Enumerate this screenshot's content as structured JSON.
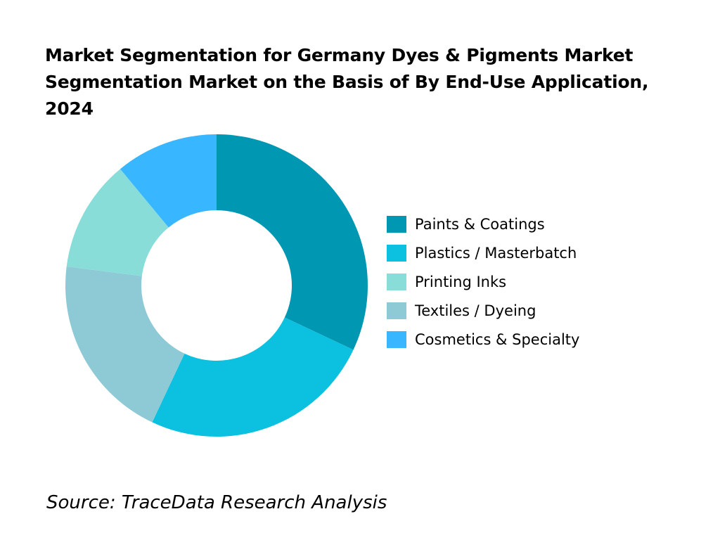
{
  "chart_data": {
    "type": "pie",
    "donut": true,
    "title": "Market Segmentation for Germany Dyes & Pigments Market Segmentation Market on the Basis of By End-Use Application, 2024",
    "categories": [
      "Paints & Coatings",
      "Plastics / Masterbatch",
      "Printing Inks",
      "Textiles / Dyeing",
      "Cosmetics & Specialty"
    ],
    "values": [
      32,
      25,
      12,
      20,
      11
    ],
    "unit": "%",
    "colors": [
      "#0097b2",
      "#0cc0df",
      "#88ddd8",
      "#8ecad6",
      "#38b6ff"
    ],
    "legend_placement": "right"
  },
  "source": "Source: TraceData Research Analysis"
}
